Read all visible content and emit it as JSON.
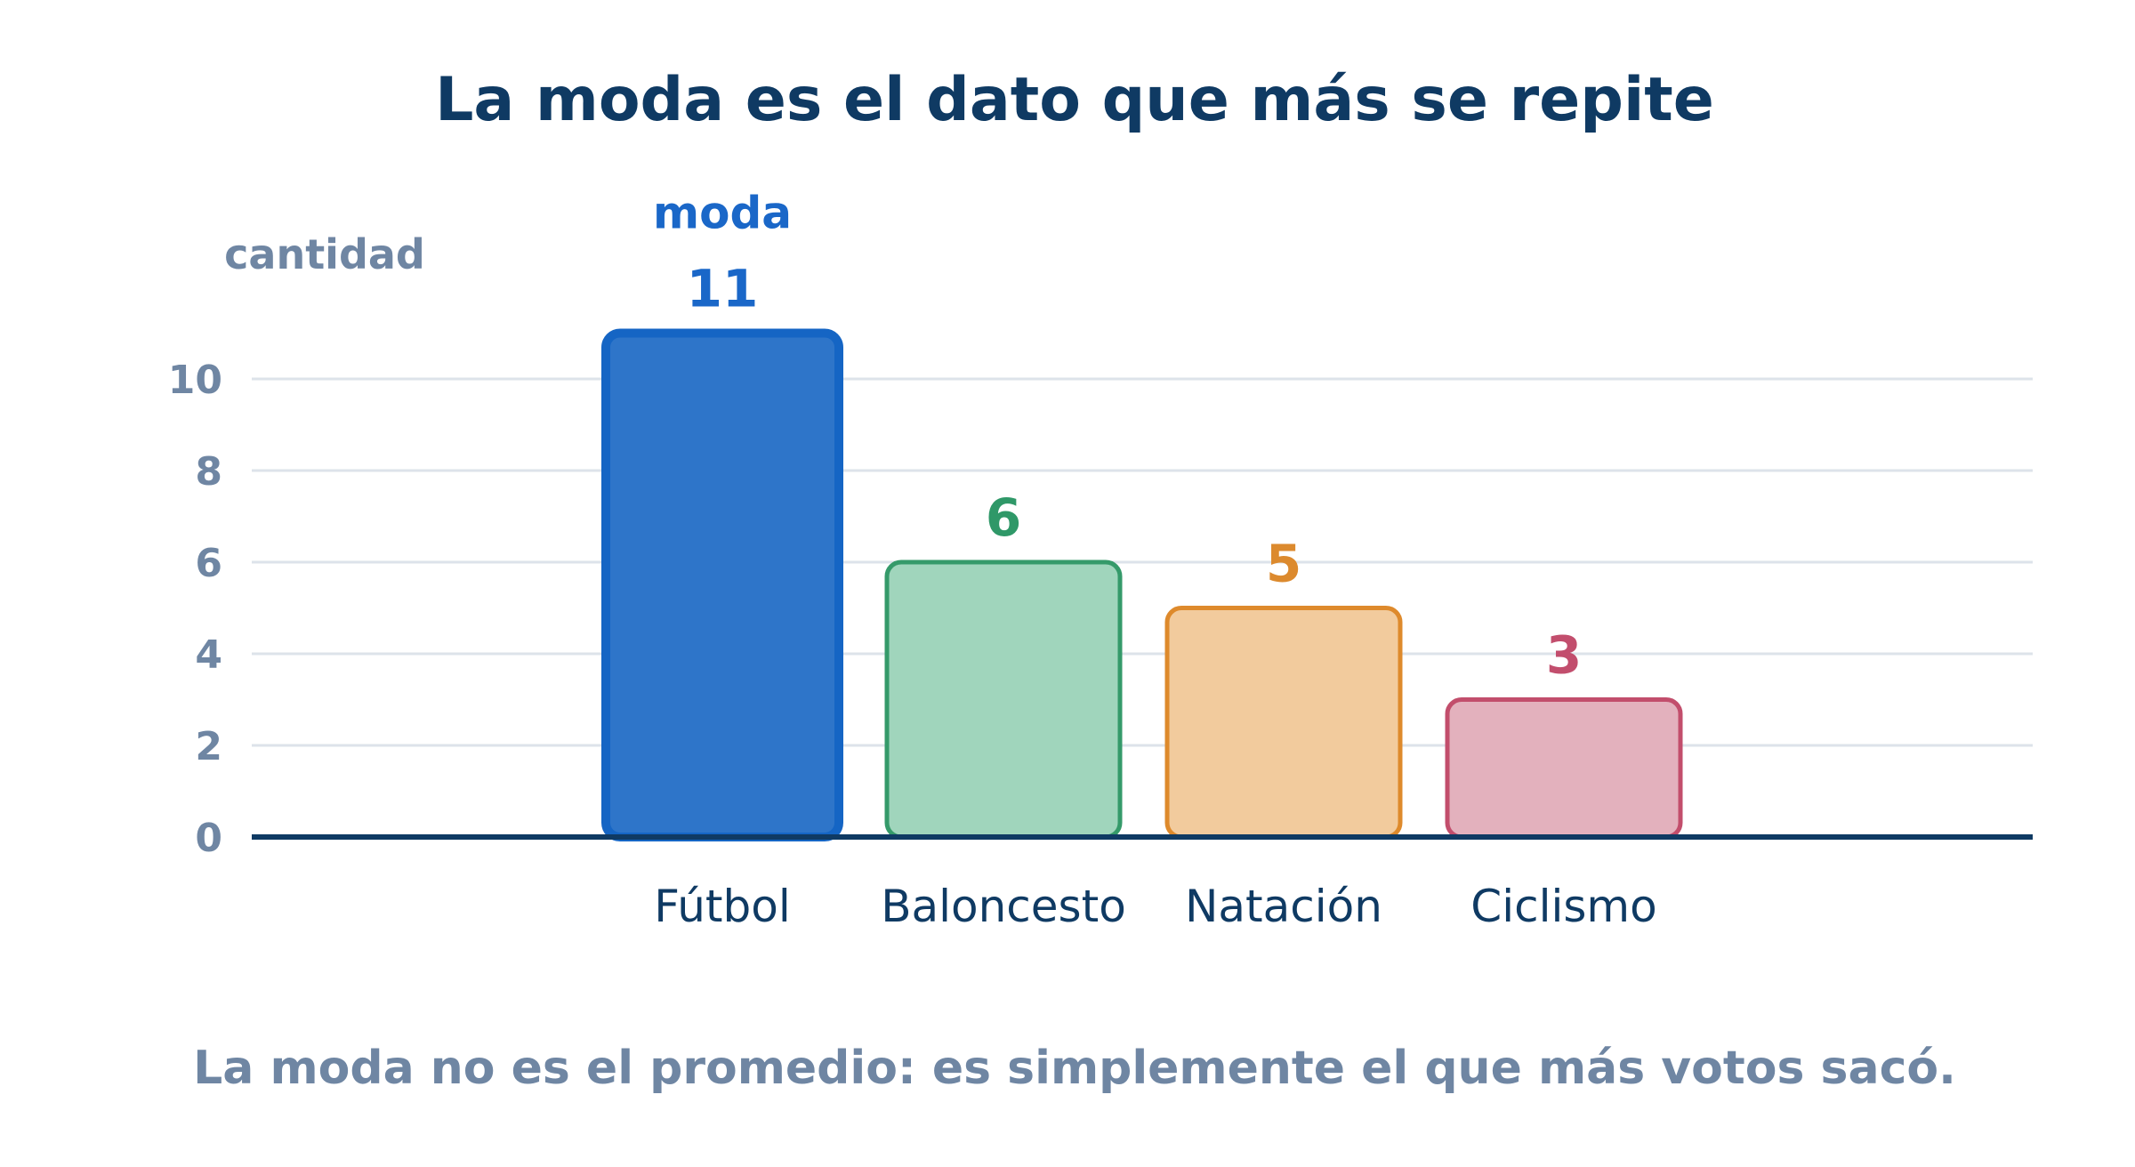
{
  "chart_data": {
    "type": "bar",
    "title": "La moda es el dato que más se repite",
    "ylabel": "cantidad",
    "xlabel": "",
    "categories": [
      "Fútbol",
      "Baloncesto",
      "Natación",
      "Ciclismo"
    ],
    "values": [
      11,
      6,
      5,
      3
    ],
    "ylim": [
      0,
      11
    ],
    "yticks": [
      0,
      2,
      4,
      6,
      8,
      10
    ],
    "grid": true,
    "annotation": {
      "text": "moda",
      "category": "Fútbol"
    },
    "caption": "La moda no es el promedio: es simplemente el que más votos sacó.",
    "colors": [
      {
        "fill": "#2e75c9",
        "stroke": "#1565c4",
        "label": "#1a67c8"
      },
      {
        "fill": "#a0d5bc",
        "stroke": "#359a6a",
        "label": "#2f9868"
      },
      {
        "fill": "#f2cb9d",
        "stroke": "#de8a2c",
        "label": "#dc8a2e"
      },
      {
        "fill": "#e3b1bd",
        "stroke": "#c24e6c",
        "label": "#c24e6d"
      }
    ],
    "axis_color": "#0f3a63",
    "grid_color": "#dde3ea"
  }
}
